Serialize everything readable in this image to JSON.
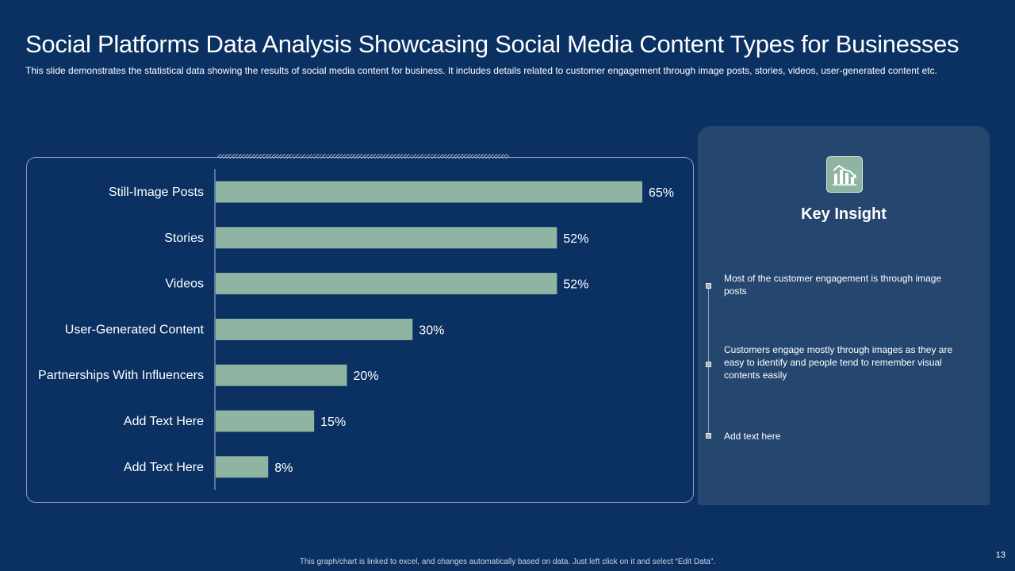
{
  "slide": {
    "title": "Social Platforms Data Analysis Showcasing Social Media Content Types for Businesses",
    "subtitle": "This slide demonstrates the statistical data showing the results of social media content for business. It includes details related to customer engagement through image posts, stories, videos, user-generated content etc.",
    "footer_note": "This graph/chart is linked to excel, and changes automatically based on data. Just left click on it and select “Edit Data”.",
    "page_number": "13"
  },
  "chart_data": {
    "type": "bar",
    "orientation": "horizontal",
    "categories": [
      "Still-Image Posts",
      "Stories",
      "Videos",
      "User-Generated Content",
      "Partnerships With Influencers",
      "Add Text Here",
      "Add Text Here"
    ],
    "values": [
      65,
      52,
      52,
      30,
      20,
      15,
      8
    ],
    "value_labels": [
      "65%",
      "52%",
      "52%",
      "30%",
      "20%",
      "15%",
      "8%"
    ],
    "title": "",
    "xlabel": "",
    "ylabel": "",
    "xlim": [
      0,
      65
    ],
    "grid": false,
    "bar_color": "#8fb5a2"
  },
  "insight": {
    "icon": "chart-down-icon",
    "title": "Key Insight",
    "points": [
      "Most of the customer engagement  is through image posts",
      "Customers engage  mostly through images as they are easy to identify and people  tend to remember visual  contents easily",
      "Add text here"
    ]
  },
  "colors": {
    "background": "#0b3163",
    "panel": "#25466f",
    "accent": "#8fb5a2"
  }
}
